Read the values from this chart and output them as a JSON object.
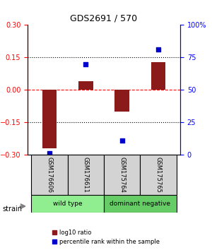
{
  "title": "GDS2691 / 570",
  "samples": [
    "GSM176606",
    "GSM176611",
    "GSM175764",
    "GSM175765"
  ],
  "log10_ratio": [
    -0.27,
    0.04,
    -0.1,
    0.13
  ],
  "percentile_rank": [
    1.5,
    70,
    11,
    81
  ],
  "groups": [
    {
      "label": "wild type",
      "samples": [
        0,
        1
      ],
      "color": "#90EE90"
    },
    {
      "label": "dominant negative",
      "samples": [
        2,
        3
      ],
      "color": "#66CC66"
    }
  ],
  "ylim_left": [
    -0.3,
    0.3
  ],
  "ylim_right": [
    0,
    100
  ],
  "yticks_left": [
    -0.3,
    -0.15,
    0,
    0.15,
    0.3
  ],
  "yticks_right": [
    0,
    25,
    50,
    75,
    100
  ],
  "ytick_labels_right": [
    "0",
    "25",
    "50",
    "75",
    "100%"
  ],
  "hlines_dotted": [
    -0.15,
    0.15
  ],
  "hline_red_dashed": 0,
  "bar_color": "#8B1A1A",
  "dot_color": "#0000CC",
  "bar_width": 0.4,
  "legend_ratio_label": "log10 ratio",
  "legend_percentile_label": "percentile rank within the sample",
  "strain_label": "strain",
  "background_color": "#ffffff"
}
